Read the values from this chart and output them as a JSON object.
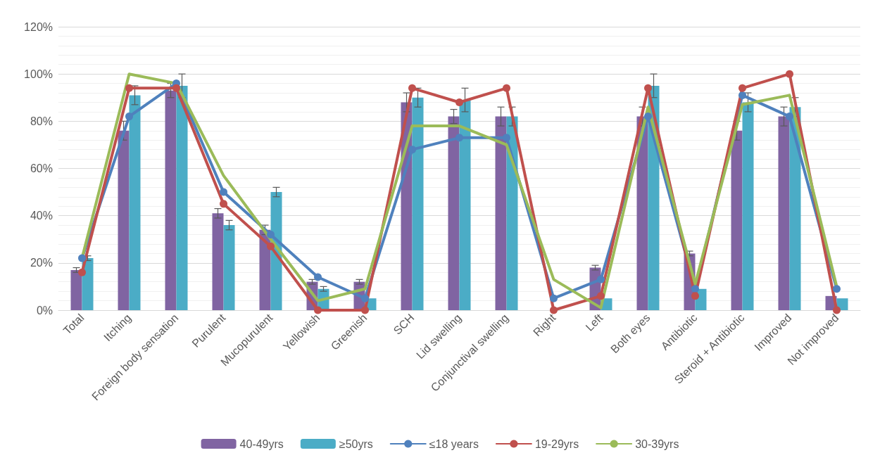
{
  "chart_data": {
    "type": "bar",
    "categories": [
      "Total",
      "Itching",
      "Foreign body sensation",
      "Purulent",
      "Mucopurulent",
      "Yellowish",
      "Greenish",
      "SCH",
      "Lid swelling",
      "Conjunctival swelling",
      "Right",
      "Left",
      "Both eyes",
      "Antibiotic",
      "Steroid + Antibiotic",
      "Improved",
      "Not improved"
    ],
    "series": [
      {
        "name": "40-49yrs",
        "color": "#8064a2",
        "values": [
          17,
          76,
          93,
          41,
          34,
          12,
          12,
          88,
          82,
          82,
          0,
          18,
          82,
          24,
          76,
          82,
          6
        ],
        "errors": [
          1,
          4,
          3,
          2,
          2,
          1,
          1,
          4,
          3,
          4,
          null,
          1,
          4,
          1,
          4,
          4,
          null
        ]
      },
      {
        "name": "≥50yrs",
        "color": "#4bacc6",
        "values": [
          22,
          91,
          95,
          36,
          50,
          9,
          5,
          90,
          89,
          82,
          0,
          5,
          95,
          9,
          88,
          86,
          5
        ],
        "errors": [
          1,
          4,
          5,
          2,
          2,
          1,
          null,
          4,
          5,
          4,
          null,
          null,
          5,
          null,
          4,
          4,
          null
        ]
      },
      {
        "name": "≤18 years",
        "type": "line",
        "color": "#4f81bd",
        "marker": "circle",
        "values": [
          22,
          82,
          96,
          50,
          32,
          14,
          5,
          68,
          73,
          73,
          5,
          13,
          82,
          9,
          91,
          82,
          9
        ]
      },
      {
        "name": "19-29yrs",
        "type": "line",
        "color": "#c0504d",
        "marker": "circle",
        "values": [
          16,
          94,
          94,
          45,
          27,
          0,
          0,
          94,
          88,
          94,
          0,
          6,
          94,
          6,
          94,
          100,
          0
        ]
      },
      {
        "name": "30-39yrs",
        "type": "line",
        "color": "#9bbb59",
        "marker": "none",
        "values": [
          22,
          100,
          96,
          57,
          30,
          4,
          9,
          78,
          78,
          70,
          13,
          1,
          86,
          11,
          87,
          91,
          10
        ]
      }
    ],
    "ylim": [
      0,
      120
    ],
    "yticks": [
      {
        "value": 0,
        "label": "0%"
      },
      {
        "value": 20,
        "label": "20%"
      },
      {
        "value": 40,
        "label": "40%"
      },
      {
        "value": 60,
        "label": "60%"
      },
      {
        "value": 80,
        "label": "80%"
      },
      {
        "value": 100,
        "label": "100%"
      },
      {
        "value": 120,
        "label": "120%"
      }
    ],
    "grid": "y",
    "legend": "bottom",
    "line_style": "solid"
  }
}
